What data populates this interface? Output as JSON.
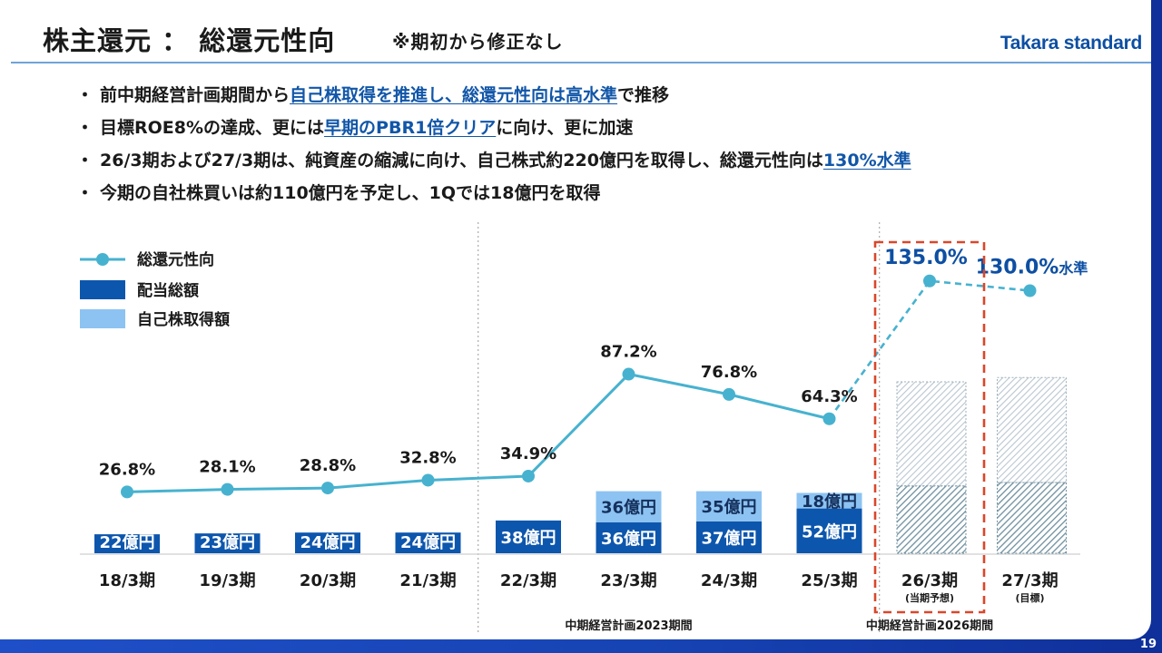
{
  "slide": {
    "title": "株主還元 ： 総還元性向",
    "title_note": "※期初から修正なし",
    "brand": "Takara standard",
    "page_number": "19"
  },
  "bullets": [
    {
      "dot": "・",
      "parts": [
        {
          "text": "前中期経営計画期間から",
          "hl": false
        },
        {
          "text": "自己株取得を推進し、総還元性向は高水準",
          "hl": true
        },
        {
          "text": "で推移",
          "hl": false
        }
      ]
    },
    {
      "dot": "・",
      "parts": [
        {
          "text": "目標ROE8%の達成、更には",
          "hl": false
        },
        {
          "text": "早期のPBR1倍クリア",
          "hl": true
        },
        {
          "text": "に向け、更に加速",
          "hl": false
        }
      ]
    },
    {
      "dot": "・",
      "parts": [
        {
          "text": "26/3期および27/3期は、純資産の縮減に向け、自己株式約220億円を取得し、総還元性向は",
          "hl": false
        },
        {
          "text": "130%水準",
          "hl": true
        }
      ]
    },
    {
      "dot": "・",
      "parts": [
        {
          "text": "今期の自社株買いは約110億円を予定し、1Qでは18億円を取得",
          "hl": false
        }
      ]
    }
  ],
  "chart_data": {
    "type": "bar",
    "categories": [
      "18/3期",
      "19/3期",
      "20/3期",
      "21/3期",
      "22/3期",
      "23/3期",
      "24/3期",
      "25/3期",
      "26/3期",
      "27/3期"
    ],
    "category_sublabels": [
      "",
      "",
      "",
      "",
      "",
      "",
      "",
      "",
      "(当期予想)",
      "(目標)"
    ],
    "legend": {
      "placement": "top-left",
      "items": [
        {
          "label": "総還元性向",
          "kind": "line"
        },
        {
          "label": "配当総額",
          "kind": "bar"
        },
        {
          "label": "自己株取得額",
          "kind": "bar"
        }
      ]
    },
    "series": [
      {
        "name": "配当総額",
        "unit": "億円",
        "values": [
          22,
          23,
          24,
          24,
          38,
          36,
          37,
          52,
          null,
          null
        ],
        "labels": [
          "22億円",
          "23億円",
          "24億円",
          "24億円",
          "38億円",
          "36億円",
          "37億円",
          "52億円",
          "",
          ""
        ]
      },
      {
        "name": "自己株取得額",
        "unit": "億円",
        "values": [
          0,
          0,
          0,
          0,
          0,
          36,
          35,
          18,
          null,
          null
        ],
        "labels": [
          "",
          "",
          "",
          "",
          "",
          "36億円",
          "35億円",
          "18億円",
          "",
          ""
        ]
      },
      {
        "name": "総還元性向",
        "unit": "%",
        "values": [
          26.8,
          28.1,
          28.8,
          32.8,
          34.9,
          87.2,
          76.8,
          64.3,
          135.0,
          130.0
        ],
        "labels": [
          "26.8%",
          "28.1%",
          "28.8%",
          "32.8%",
          "34.9%",
          "87.2%",
          "76.8%",
          "64.3%",
          "135.0%",
          "130.0%"
        ],
        "suffix_last": "水準"
      }
    ],
    "forecast": {
      "stack_totals": [
        null,
        null,
        null,
        null,
        null,
        null,
        null,
        null,
        199,
        204
      ],
      "dividend_part": [
        null,
        null,
        null,
        null,
        null,
        null,
        null,
        null,
        78,
        82
      ],
      "note": "26/3期・27/3期はハッチング表示（内訳の数値表示なし）"
    },
    "periods": [
      {
        "label": "中期経営計画2023期間",
        "from": "22/3期",
        "to": "24/3期"
      },
      {
        "label": "中期経営計画2026期間",
        "from": "25/3期",
        "to": "27/3期"
      }
    ],
    "highlight": {
      "category": "26/3期",
      "style": "red-dashed-box"
    },
    "colors": {
      "dividend": "#0d56ad",
      "buyback": "#8cc3f2",
      "line": "#47b2cf",
      "forecast_dividend": "#6e8f9e",
      "forecast_buyback": "#b9c6cf",
      "highlight": "#d9472b",
      "period_divider": "#9a9a9a"
    }
  }
}
